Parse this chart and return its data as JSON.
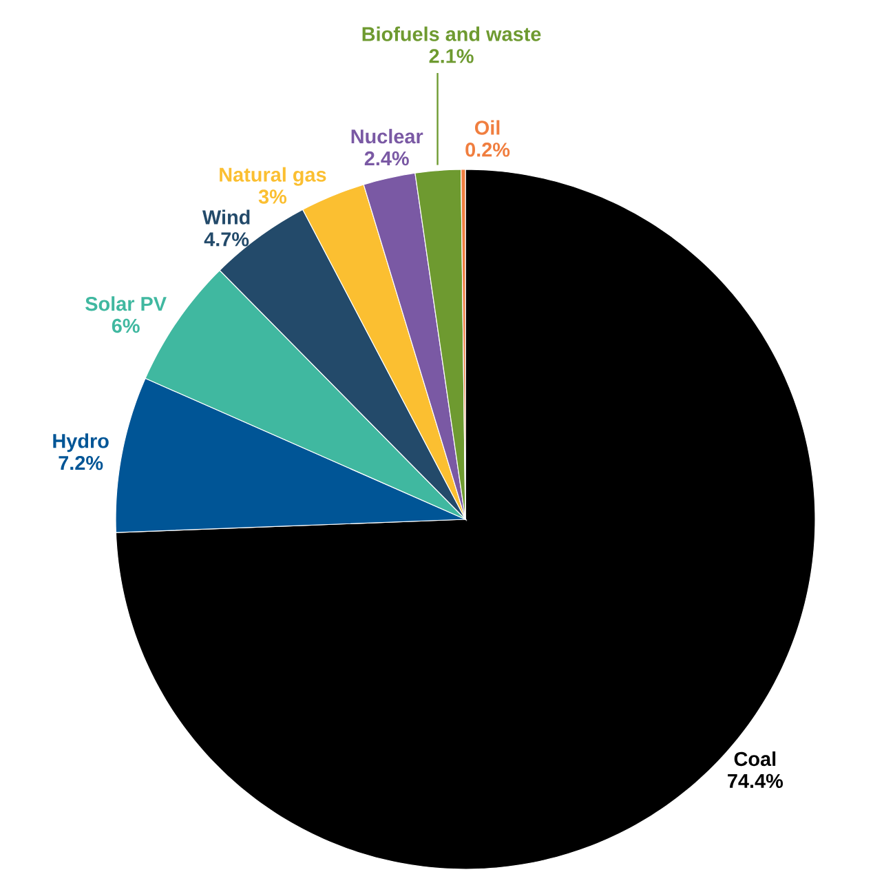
{
  "chart_data": {
    "type": "pie",
    "categories": [
      "Coal",
      "Hydro",
      "Solar PV",
      "Wind",
      "Natural gas",
      "Nuclear",
      "Biofuels and waste",
      "Oil"
    ],
    "values": [
      74.4,
      7.2,
      6,
      4.7,
      3,
      2.4,
      2.1,
      0.2
    ],
    "value_labels": [
      "74.4%",
      "7.2%",
      "6%",
      "4.7%",
      "3%",
      "2.4%",
      "2.1%",
      "0.2%"
    ],
    "colors": [
      "#000000",
      "#005596",
      "#40b8a0",
      "#234a6a",
      "#fbbf31",
      "#7a59a4",
      "#6e9a30",
      "#f07e3f"
    ]
  }
}
